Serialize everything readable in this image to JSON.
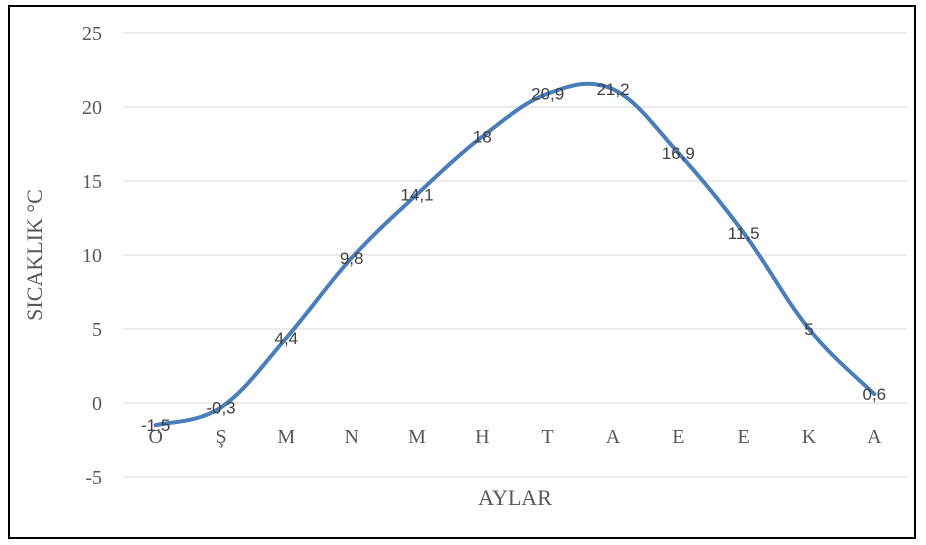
{
  "chart_data": {
    "type": "line",
    "categories": [
      "O",
      "Ş",
      "M",
      "N",
      "M",
      "H",
      "T",
      "A",
      "E",
      "E",
      "K",
      "A"
    ],
    "series": [
      {
        "values": [
          -1.5,
          -0.3,
          4.4,
          9.8,
          14.1,
          18,
          20.9,
          21.2,
          16.9,
          11.5,
          5,
          0.6
        ],
        "labels": [
          "-1,5",
          "-0,3",
          "4,4",
          "9,8",
          "14,1",
          "18",
          "20,9",
          "21,2",
          "16,9",
          "11,5",
          "5",
          "0,6"
        ],
        "color": "#4a7ebb"
      }
    ],
    "xlabel": "AYLAR",
    "ylabel": "SICAKLIK °C",
    "ylim": [
      -5,
      25
    ],
    "yticks": [
      -5,
      0,
      5,
      10,
      15,
      20,
      25
    ],
    "grid": true,
    "legend": "none",
    "line_color": "#4a7ebb",
    "grid_color": "#d9d9d9"
  }
}
